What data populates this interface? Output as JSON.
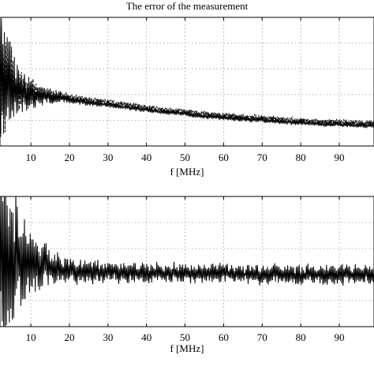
{
  "figure": {
    "title": "The error of the measurement"
  },
  "chart_data": [
    {
      "type": "line",
      "xlabel": "f [MHz]",
      "ylabel": "",
      "xlim": [
        2,
        99
      ],
      "ylim": [
        0,
        1
      ],
      "xticks": [
        10,
        20,
        30,
        40,
        50,
        60,
        70,
        80,
        90
      ],
      "yticks": [],
      "grid": true,
      "series": [
        {
          "style": "solid",
          "x": [
            2,
            3,
            4,
            5,
            6,
            8,
            10,
            12,
            15,
            20,
            25,
            30,
            35,
            40,
            45,
            50,
            55,
            60,
            65,
            70,
            75,
            80,
            85,
            90,
            95,
            99
          ],
          "y": [
            0.6,
            0.55,
            0.5,
            0.46,
            0.44,
            0.41,
            0.4,
            0.39,
            0.38,
            0.36,
            0.34,
            0.32,
            0.3,
            0.28,
            0.26,
            0.25,
            0.23,
            0.22,
            0.21,
            0.2,
            0.19,
            0.18,
            0.17,
            0.17,
            0.16,
            0.16
          ]
        },
        {
          "style": "dashed",
          "x": [
            2,
            3,
            4,
            5,
            6,
            8,
            10,
            12,
            15,
            20,
            25,
            30,
            35,
            40,
            45,
            50,
            55,
            60,
            65,
            70,
            75,
            80,
            85,
            90,
            95,
            99
          ],
          "y": [
            0.62,
            0.57,
            0.52,
            0.48,
            0.46,
            0.43,
            0.42,
            0.41,
            0.4,
            0.38,
            0.36,
            0.34,
            0.32,
            0.3,
            0.28,
            0.27,
            0.25,
            0.24,
            0.23,
            0.22,
            0.21,
            0.2,
            0.19,
            0.19,
            0.18,
            0.18
          ]
        }
      ]
    },
    {
      "type": "line",
      "xlabel": "f [MHz]",
      "ylabel": "",
      "xlim": [
        2,
        99
      ],
      "ylim": [
        0,
        1
      ],
      "xticks": [
        10,
        20,
        30,
        40,
        50,
        60,
        70,
        80,
        90
      ],
      "yticks": [],
      "grid": true,
      "series": [
        {
          "style": "solid",
          "x": [
            2,
            3,
            4,
            5,
            6,
            8,
            10,
            12,
            15,
            20,
            25,
            30,
            40,
            50,
            60,
            70,
            80,
            90,
            99
          ],
          "y": [
            0.5,
            0.5,
            0.5,
            0.5,
            0.5,
            0.5,
            0.5,
            0.48,
            0.45,
            0.43,
            0.42,
            0.42,
            0.41,
            0.41,
            0.41,
            0.4,
            0.4,
            0.4,
            0.4
          ]
        }
      ]
    }
  ]
}
